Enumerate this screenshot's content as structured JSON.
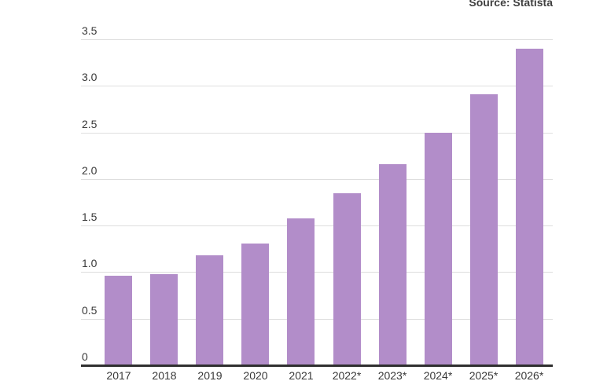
{
  "source": {
    "label": "Source: Statista"
  },
  "chart_data": {
    "type": "bar",
    "title": "",
    "xlabel": "",
    "ylabel": "",
    "categories": [
      "2017",
      "2018",
      "2019",
      "2020",
      "2021",
      "2022*",
      "2023*",
      "2024*",
      "2025*",
      "2026*"
    ],
    "values": [
      0.96,
      0.98,
      1.18,
      1.31,
      1.58,
      1.85,
      2.16,
      2.5,
      2.91,
      3.4
    ],
    "ylim": [
      0,
      3.5
    ],
    "yticks": [
      {
        "v": 0,
        "label": "0"
      },
      {
        "v": 0.5,
        "label": "0.5"
      },
      {
        "v": 1,
        "label": "1.0"
      },
      {
        "v": 1.5,
        "label": "1.5"
      },
      {
        "v": 2,
        "label": "2.0"
      },
      {
        "v": 2.5,
        "label": "2.5"
      },
      {
        "v": 3,
        "label": "3.0"
      },
      {
        "v": 3.5,
        "label": "3.5"
      }
    ],
    "grid": true,
    "legend": false,
    "legend_position": "none",
    "colors": {
      "bar": "#b28dc9",
      "gridline": "#dedede",
      "baseline": "#2f2f2f",
      "tick_label": "#383838",
      "source_text": "#3f3f3f"
    },
    "source_note": "Source: Statista"
  }
}
